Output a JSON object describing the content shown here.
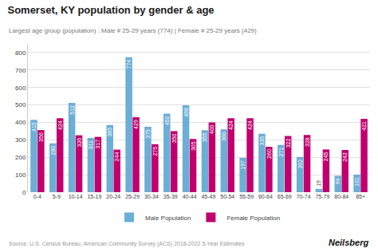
{
  "chart_data": {
    "type": "bar",
    "title": "Somerset, KY population by gender & age",
    "subtitle": "Largest age group (population) : Male # 25-29 years (774) | Female # 25-29 years (429)",
    "annotations": [
      "Source: U.S. Census Bureau, American Community Survey (ACS) 2018-2022 5-Year Estimates",
      "Neilsberg"
    ],
    "categories": [
      "0-4",
      "5-9",
      "10-14",
      "15-19",
      "20-24",
      "25-29",
      "30-34",
      "35-39",
      "40-44",
      "45-49",
      "50-54",
      "55-59",
      "60-64",
      "65-69",
      "70-74",
      "75-79",
      "80-84",
      "85+"
    ],
    "series": [
      {
        "name": "Male Population",
        "color": "#6baed6",
        "values": [
          415,
          280,
          512,
          311,
          385,
          774,
          375,
          450,
          498,
          355,
          360,
          197,
          335,
          271,
          202,
          19,
          94,
          101
        ]
      },
      {
        "name": "Female Population",
        "color": "#c0006e",
        "values": [
          356,
          424,
          326,
          317,
          244,
          429,
          275,
          350,
          305,
          400,
          424,
          424,
          260,
          322,
          328,
          245,
          242,
          421
        ]
      }
    ],
    "ylim": [
      0,
      850
    ],
    "yticks": [
      0,
      100,
      200,
      300,
      400,
      500,
      600,
      700,
      800
    ],
    "grid": true,
    "legend": "bottom",
    "data_labels": true
  }
}
